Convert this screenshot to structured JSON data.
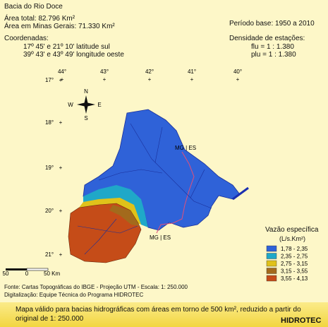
{
  "header": {
    "title": "Bacia do Rio Doce",
    "area_total": "Área total: 82.796 Km²",
    "area_mg": "Área em Minas Gerais: 71.330 Km²",
    "period": "Período base:  1950  a  2010",
    "coords_title": "Coordenadas:",
    "lat_range": "17º 45' e 21º 10'  latitude sul",
    "lon_range": "39º 43' e 43º 49'  longitude oeste",
    "density_title": "Densidade de estações:",
    "flu": "flu  = 1 : 1.380",
    "plu": "plu = 1 : 1.380"
  },
  "map": {
    "longitudes": [
      "44°",
      "43°",
      "42°",
      "41°",
      "40°"
    ],
    "latitudes": [
      "17°",
      "18°",
      "19°",
      "20°",
      "21°"
    ],
    "compass": {
      "n": "N",
      "w": "W",
      "e": "E",
      "s": "S"
    },
    "border_labels": [
      "MG | ES",
      "MG | ES"
    ],
    "scale": {
      "left": "50",
      "center": "0",
      "right": "50 Km"
    }
  },
  "legend": {
    "title": "Vazão específica",
    "unit": "(L/s.Km²)",
    "classes": [
      {
        "label": "1,78 - 2,35",
        "color": "#2f62d8"
      },
      {
        "label": "2,35 - 2,75",
        "color": "#1fa8c8"
      },
      {
        "label": "2,75 - 3,15",
        "color": "#e0c21a"
      },
      {
        "label": "3,15 - 3,55",
        "color": "#a36a1c"
      },
      {
        "label": "3,55 - 4,13",
        "color": "#c54c18"
      }
    ]
  },
  "footer": {
    "source": "Fonte: Cartas Topográficas do IBGE - Projeção UTM - Escala: 1: 250.000",
    "digitization": "Digitalização: Equipe Técnica do Programa HIDROTEC",
    "note": "Mapa válido para bacias hidrográficas com áreas em torno de 500 km², reduzido a partir do original de 1: 250.000",
    "brand": "HIDROTEC"
  }
}
